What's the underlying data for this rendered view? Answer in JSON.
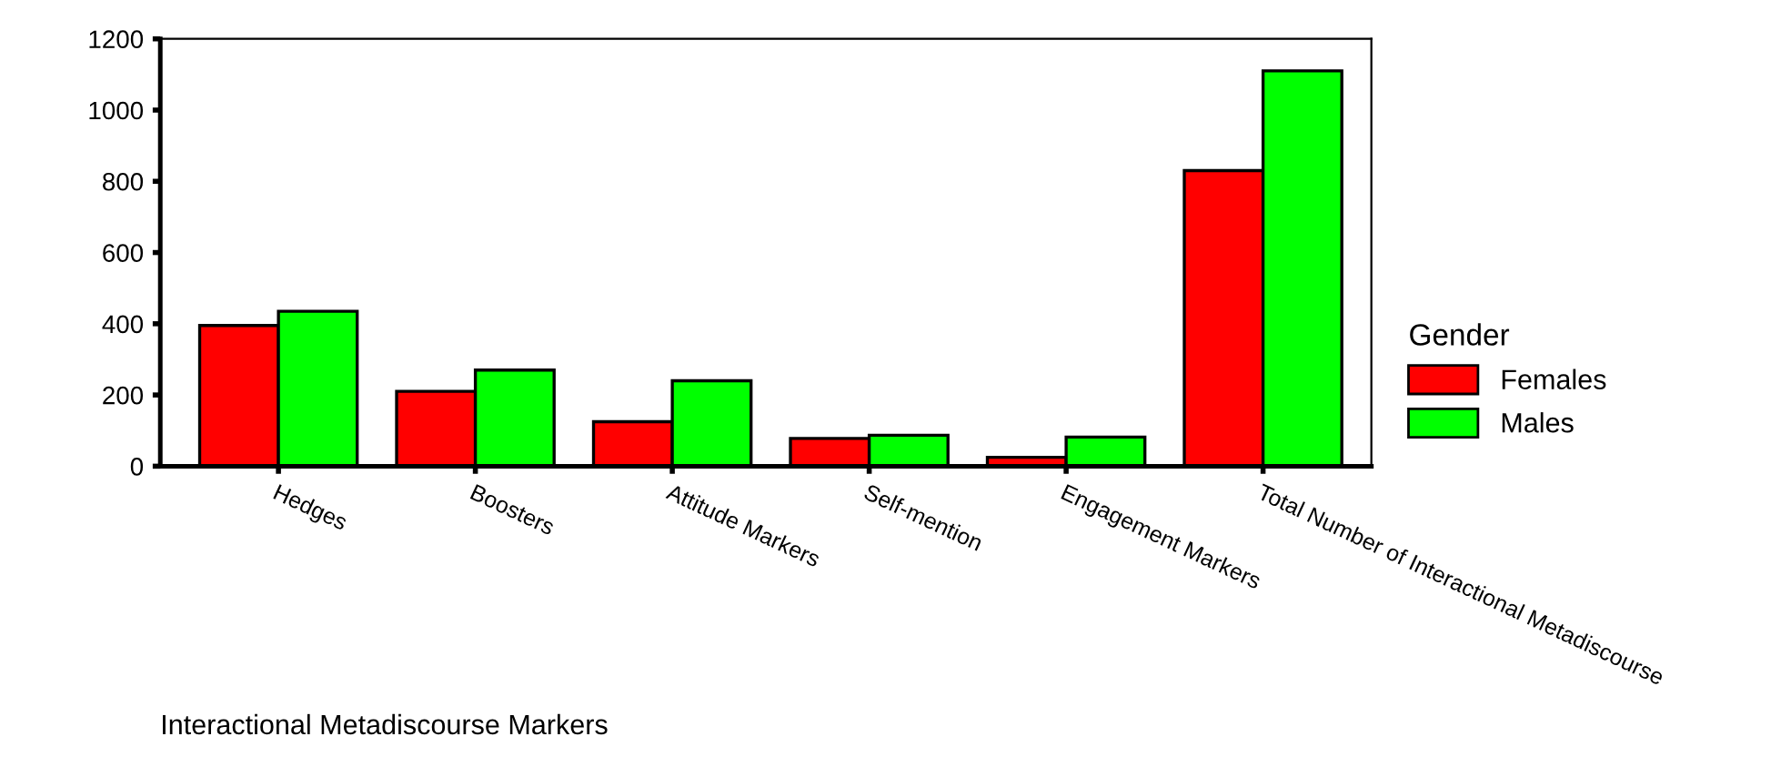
{
  "chart_data": {
    "type": "bar",
    "xlabel": "Interactional Metadiscourse Markers",
    "legend_title": "Gender",
    "categories": [
      "Hedges",
      "Boosters",
      "Attitude Markers",
      "Self-mention",
      "Engagement Markers",
      "Total Number of Interactional Metadiscourse"
    ],
    "series": [
      {
        "name": "Females",
        "color": "#ff0000",
        "values": [
          395,
          210,
          125,
          78,
          25,
          830
        ]
      },
      {
        "name": "Males",
        "color": "#00ff00",
        "values": [
          435,
          270,
          240,
          87,
          82,
          1110
        ]
      }
    ],
    "ylim": [
      0,
      1200
    ],
    "yticks": [
      0,
      200,
      400,
      600,
      800,
      1000,
      1200
    ],
    "grid": false,
    "legend": "right"
  }
}
